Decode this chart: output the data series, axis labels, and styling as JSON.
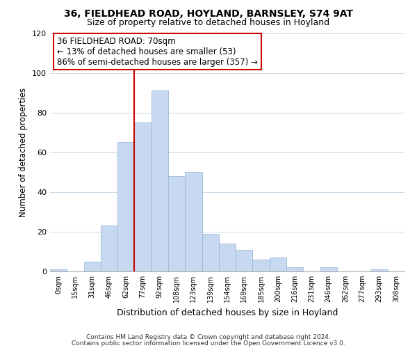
{
  "title": "36, FIELDHEAD ROAD, HOYLAND, BARNSLEY, S74 9AT",
  "subtitle": "Size of property relative to detached houses in Hoyland",
  "xlabel": "Distribution of detached houses by size in Hoyland",
  "ylabel": "Number of detached properties",
  "bar_labels": [
    "0sqm",
    "15sqm",
    "31sqm",
    "46sqm",
    "62sqm",
    "77sqm",
    "92sqm",
    "108sqm",
    "123sqm",
    "139sqm",
    "154sqm",
    "169sqm",
    "185sqm",
    "200sqm",
    "216sqm",
    "231sqm",
    "246sqm",
    "262sqm",
    "277sqm",
    "293sqm",
    "308sqm"
  ],
  "bar_heights": [
    1,
    0,
    5,
    23,
    65,
    75,
    91,
    48,
    50,
    19,
    14,
    11,
    6,
    7,
    2,
    0,
    2,
    0,
    0,
    1,
    0
  ],
  "bar_color": "#c6d9f0",
  "bar_edge_color": "#9ab8d8",
  "vline_color": "#cc0000",
  "annotation_text": "36 FIELDHEAD ROAD: 70sqm\n← 13% of detached houses are smaller (53)\n86% of semi-detached houses are larger (357) →",
  "annotation_box_color": "#ffffff",
  "annotation_box_edge": "#cc0000",
  "ylim": [
    0,
    120
  ],
  "yticks": [
    0,
    20,
    40,
    60,
    80,
    100,
    120
  ],
  "footer_line1": "Contains HM Land Registry data © Crown copyright and database right 2024.",
  "footer_line2": "Contains public sector information licensed under the Open Government Licence v3.0.",
  "bg_color": "#ffffff",
  "grid_color": "#c8d8e8"
}
